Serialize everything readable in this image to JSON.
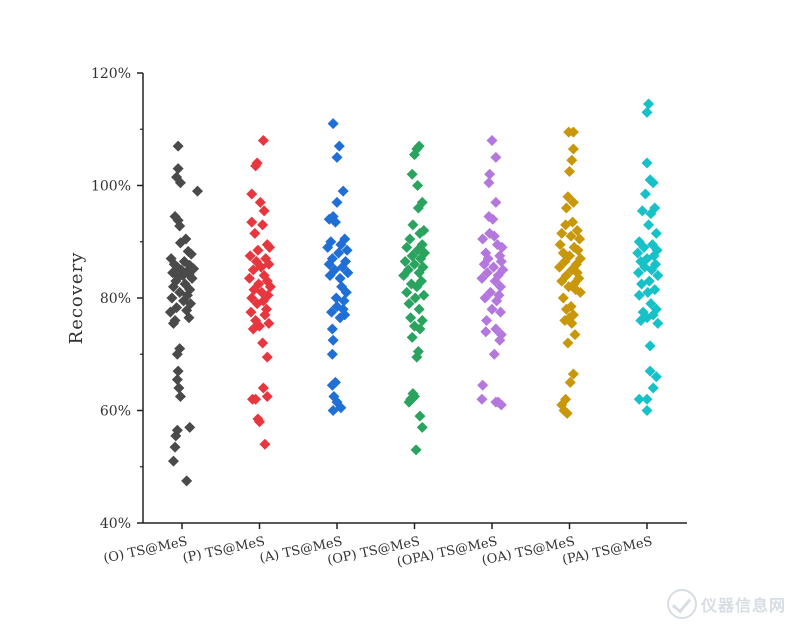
{
  "chart_data": {
    "type": "scatter",
    "ylabel": "Recovery",
    "xlabel": "",
    "ylim": [
      40,
      120
    ],
    "yticks": [
      "40%",
      "60%",
      "80%",
      "100%",
      "120%"
    ],
    "ytick_values": [
      40,
      60,
      80,
      100,
      120
    ],
    "grid": false,
    "marker": "diamond",
    "categories": [
      "(O) TS@MeS",
      "(P) TS@MeS",
      "(A) TS@MeS",
      "(OP) TS@MeS",
      "(OPA) TS@MeS",
      "(OA) TS@MeS",
      "(PA) TS@MeS"
    ],
    "series": [
      {
        "color": "#4a4a4a",
        "values": [
          107,
          103,
          101.5,
          100.5,
          99,
          94.5,
          93.8,
          92.8,
          90.5,
          89.8,
          88.3,
          87.8,
          87,
          86.5,
          86,
          85.8,
          85.5,
          85.2,
          85,
          84.7,
          84.5,
          84.2,
          84,
          83.8,
          83.5,
          83,
          82.5,
          82,
          81.5,
          81,
          80.5,
          80,
          79.5,
          79,
          78.3,
          77.8,
          77.5,
          76.5,
          76,
          75.5,
          71,
          70,
          67,
          65.5,
          64,
          62.5,
          57,
          56.5,
          55.5,
          53.5,
          51,
          47.5
        ],
        "offsets": [
          -0.05,
          -0.05,
          -0.07,
          -0.02,
          0.2,
          -0.09,
          -0.05,
          -0.03,
          0.05,
          -0.02,
          0.08,
          0.12,
          -0.14,
          0.03,
          -0.1,
          0.1,
          -0.06,
          0.15,
          -0.01,
          0.06,
          -0.12,
          0.09,
          0.01,
          -0.04,
          0.13,
          -0.08,
          0.04,
          -0.11,
          0.1,
          -0.03,
          0.07,
          -0.13,
          0.02,
          0.11,
          -0.07,
          0.06,
          -0.15,
          0.09,
          -0.09,
          -0.11,
          -0.03,
          -0.06,
          -0.05,
          -0.06,
          -0.04,
          -0.02,
          0.1,
          -0.06,
          -0.08,
          -0.09,
          -0.11,
          0.06
        ]
      },
      {
        "color": "#e8363f",
        "values": [
          108,
          104,
          103.5,
          98.5,
          97,
          95.5,
          93.5,
          93,
          91.5,
          89.5,
          89,
          88.5,
          87.5,
          87,
          86.5,
          86,
          85.5,
          85,
          84,
          83.5,
          83,
          82.5,
          82,
          81.5,
          81,
          80.5,
          80,
          79.5,
          79,
          78,
          77.5,
          77,
          76,
          75.5,
          75,
          74.5,
          72,
          69.5,
          64,
          62.5,
          62,
          62,
          58.5,
          58,
          54
        ],
        "offsets": [
          0.05,
          -0.03,
          -0.05,
          -0.1,
          0.01,
          0.06,
          -0.1,
          0.04,
          -0.06,
          0.1,
          0.13,
          -0.02,
          -0.12,
          0.08,
          -0.04,
          0.12,
          0.02,
          -0.08,
          0.06,
          -0.13,
          0.1,
          -0.01,
          0.14,
          -0.07,
          0.03,
          0.11,
          -0.1,
          0.05,
          -0.03,
          0.09,
          -0.11,
          0.07,
          -0.05,
          0.12,
          0.0,
          -0.08,
          0.04,
          0.1,
          0.05,
          0.1,
          -0.09,
          -0.05,
          -0.02,
          0.0,
          0.07
        ]
      },
      {
        "color": "#1f6fd6",
        "values": [
          111,
          107,
          105,
          99,
          97,
          94.5,
          94,
          93.5,
          90.5,
          90,
          89.5,
          89,
          88.5,
          88,
          87,
          86.5,
          86,
          85.5,
          85,
          84.5,
          84,
          83.5,
          82,
          81,
          80,
          79.5,
          78.5,
          78,
          77.5,
          77,
          76.5,
          74.5,
          72.5,
          70,
          65,
          64.5,
          62.5,
          61.5,
          60.5,
          60
        ],
        "offsets": [
          -0.05,
          0.03,
          0.0,
          0.08,
          0.0,
          -0.05,
          -0.1,
          -0.02,
          0.1,
          -0.08,
          0.05,
          -0.12,
          0.13,
          0.02,
          -0.06,
          0.11,
          -0.1,
          0.07,
          -0.03,
          0.14,
          -0.09,
          0.04,
          0.06,
          0.12,
          -0.01,
          0.09,
          0.0,
          0.08,
          -0.07,
          0.1,
          0.04,
          -0.06,
          -0.05,
          -0.06,
          -0.02,
          -0.06,
          -0.04,
          0.0,
          0.05,
          -0.05
        ]
      },
      {
        "color": "#2aa35f",
        "values": [
          107,
          106.5,
          105.5,
          102,
          100,
          97,
          96,
          93,
          92,
          91.5,
          90.5,
          89.5,
          89,
          88.5,
          88,
          87.5,
          87,
          86.5,
          86,
          85.5,
          85,
          84.5,
          84,
          83,
          82.5,
          82,
          81,
          80.5,
          80,
          79,
          78,
          76.5,
          76,
          75,
          74.5,
          73,
          70.5,
          69.5,
          63,
          62.5,
          62,
          61.5,
          59,
          57,
          53
        ],
        "offsets": [
          0.06,
          0.03,
          0.0,
          -0.03,
          0.04,
          0.1,
          0.05,
          -0.02,
          0.12,
          0.07,
          -0.06,
          0.1,
          -0.1,
          0.04,
          0.13,
          -0.03,
          0.08,
          -0.12,
          0.0,
          0.11,
          -0.08,
          0.06,
          -0.14,
          0.09,
          -0.04,
          0.03,
          -0.1,
          0.12,
          0.01,
          -0.07,
          0.06,
          -0.05,
          0.1,
          0.0,
          0.07,
          -0.03,
          0.05,
          0.03,
          -0.02,
          0.0,
          -0.05,
          -0.07,
          0.07,
          0.1,
          0.02
        ]
      },
      {
        "color": "#b377de",
        "values": [
          108,
          105,
          102,
          100.5,
          97,
          94.5,
          94,
          91.5,
          91,
          90.5,
          89.5,
          89,
          88,
          87.5,
          87,
          86.5,
          86,
          85.5,
          85,
          84.5,
          84,
          83.5,
          83,
          82,
          81,
          80.5,
          80,
          79.5,
          78,
          77.5,
          76,
          74.5,
          74,
          73.5,
          72.5,
          70,
          64.5,
          62,
          61.5,
          61.5,
          61
        ],
        "offsets": [
          0.0,
          0.05,
          -0.03,
          -0.04,
          0.05,
          -0.04,
          0.01,
          -0.03,
          0.03,
          -0.12,
          0.07,
          0.13,
          -0.08,
          0.1,
          -0.05,
          0.12,
          -0.1,
          0.02,
          0.14,
          -0.06,
          0.08,
          -0.13,
          0.04,
          0.11,
          -0.02,
          0.09,
          -0.09,
          0.06,
          0.0,
          0.11,
          -0.07,
          0.05,
          -0.08,
          0.12,
          0.1,
          0.03,
          -0.12,
          -0.13,
          0.05,
          0.08,
          0.12
        ]
      },
      {
        "color": "#c9970a",
        "values": [
          109.5,
          109.5,
          106.5,
          104.5,
          102.5,
          98,
          97,
          96,
          93.5,
          93,
          92,
          91.5,
          91,
          90.5,
          89.5,
          89,
          88.5,
          88,
          87.5,
          87,
          86.5,
          86,
          85.5,
          85,
          84.5,
          84,
          83.5,
          83,
          82.5,
          82,
          81.5,
          81,
          80,
          78.5,
          78,
          77,
          76.5,
          76,
          75.5,
          73.5,
          72,
          66.5,
          65,
          62,
          61,
          60,
          59.5
        ],
        "offsets": [
          -0.01,
          0.05,
          0.05,
          0.03,
          0.0,
          -0.02,
          0.05,
          -0.04,
          0.04,
          -0.05,
          0.1,
          -0.1,
          0.02,
          0.13,
          -0.12,
          0.06,
          0.11,
          -0.08,
          0.0,
          0.14,
          -0.06,
          0.09,
          -0.13,
          0.03,
          0.1,
          -0.04,
          0.12,
          -0.1,
          0.06,
          -0.01,
          0.08,
          0.14,
          -0.08,
          0.02,
          -0.04,
          0.05,
          0.0,
          -0.06,
          0.03,
          0.07,
          -0.02,
          0.05,
          0.01,
          -0.05,
          -0.1,
          -0.07,
          -0.03
        ]
      },
      {
        "color": "#17c1c8",
        "values": [
          114.5,
          113,
          104,
          101,
          100.5,
          98.5,
          96,
          95.5,
          95,
          93,
          91.5,
          90,
          89.5,
          89,
          88.5,
          88,
          87.5,
          87,
          86.5,
          86,
          85.5,
          85,
          84.5,
          84,
          83,
          82.5,
          81.5,
          81,
          80.5,
          79,
          78,
          77.5,
          77,
          76.5,
          76,
          75.5,
          71.5,
          67,
          66,
          64,
          62,
          62,
          60
        ],
        "offsets": [
          0.02,
          0.0,
          0.0,
          0.04,
          0.08,
          -0.02,
          0.1,
          -0.06,
          0.05,
          0.02,
          0.12,
          -0.1,
          0.07,
          -0.04,
          0.13,
          -0.12,
          0.09,
          0.0,
          -0.08,
          0.11,
          -0.03,
          0.06,
          -0.11,
          0.14,
          0.03,
          -0.07,
          0.1,
          0.01,
          -0.1,
          0.05,
          0.12,
          -0.05,
          0.08,
          0.0,
          -0.08,
          0.14,
          0.04,
          0.04,
          0.12,
          0.08,
          -0.1,
          0.0,
          0.0
        ]
      }
    ]
  }
}
